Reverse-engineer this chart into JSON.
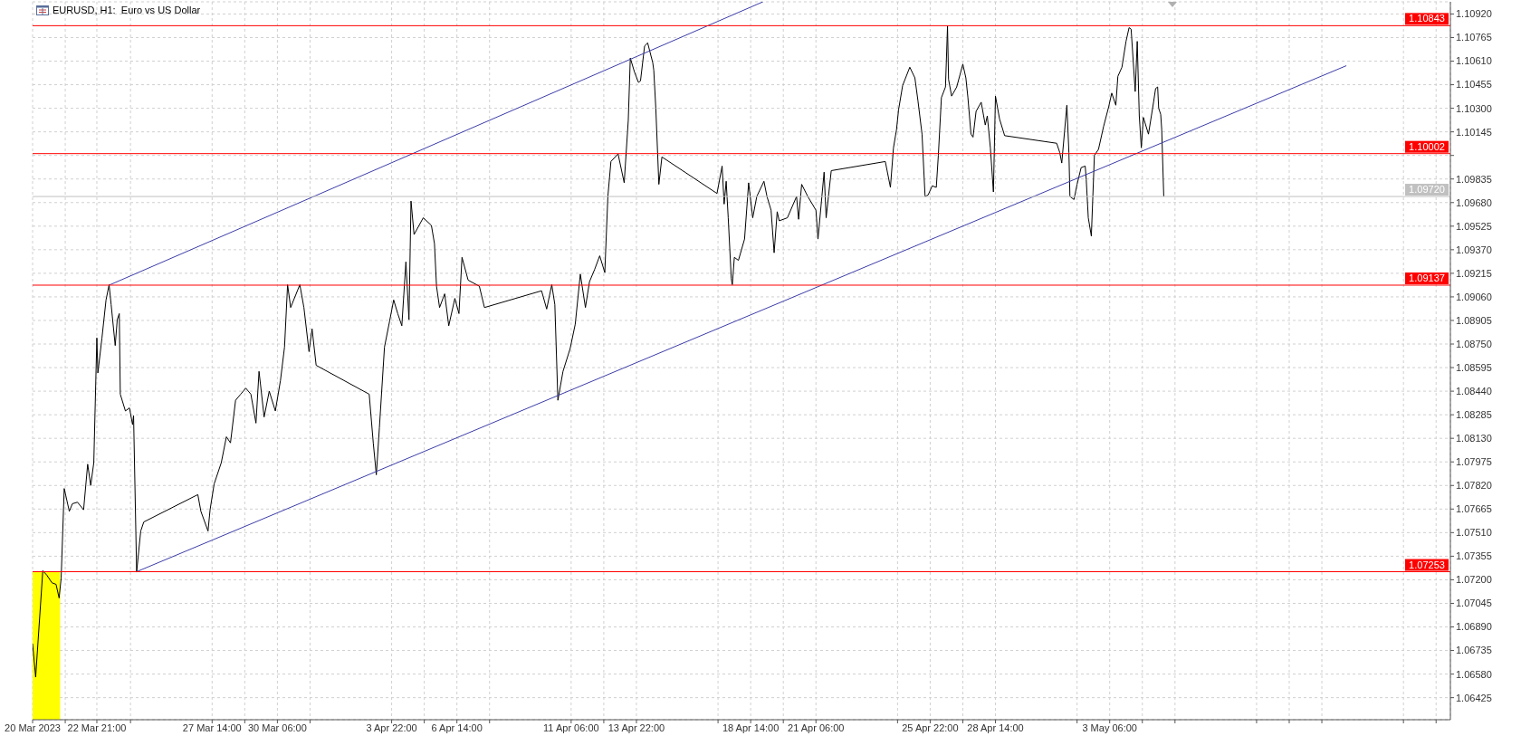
{
  "chart_data": {
    "type": "line",
    "title": "EURUSD, H1:  Euro vs US Dollar",
    "xlim": [
      "2023-03-20T06:00",
      "2023-05-17T04:00"
    ],
    "xticks": [
      {
        "value": "2023-03-20T06:00",
        "label": "20 Mar 2023"
      },
      {
        "value": "2023-03-21T14:00",
        "label": null
      },
      {
        "value": "2023-03-22T21:00",
        "label": "22 Mar 21:00"
      },
      {
        "value": "2023-03-24T06:00",
        "label": null
      },
      {
        "value": "2023-03-27T14:00",
        "label": "27 Mar 14:00"
      },
      {
        "value": "2023-03-28T22:00",
        "label": null
      },
      {
        "value": "2023-03-30T06:00",
        "label": "30 Mar 06:00"
      },
      {
        "value": "2023-03-31T14:00",
        "label": null
      },
      {
        "value": "2023-04-03T22:00",
        "label": "3 Apr 22:00"
      },
      {
        "value": "2023-04-05T06:00",
        "label": null
      },
      {
        "value": "2023-04-06T14:00",
        "label": "6 Apr 14:00"
      },
      {
        "value": "2023-04-07T22:00",
        "label": null
      },
      {
        "value": "2023-04-11T06:00",
        "label": "11 Apr 06:00"
      },
      {
        "value": "2023-04-12T14:00",
        "label": null
      },
      {
        "value": "2023-04-13T22:00",
        "label": "13 Apr 22:00"
      },
      {
        "value": "2023-04-17T06:00",
        "label": null
      },
      {
        "value": "2023-04-18T14:00",
        "label": "18 Apr 14:00"
      },
      {
        "value": "2023-04-19T22:00",
        "label": null
      },
      {
        "value": "2023-04-21T06:00",
        "label": "21 Apr 06:00"
      },
      {
        "value": "2023-04-24T14:00",
        "label": null
      },
      {
        "value": "2023-04-25T22:00",
        "label": "25 Apr 22:00"
      },
      {
        "value": "2023-04-27T06:00",
        "label": null
      },
      {
        "value": "2023-04-28T14:00",
        "label": "28 Apr 14:00"
      },
      {
        "value": "2023-05-01T22:00",
        "label": null
      },
      {
        "value": "2023-05-03T06:00",
        "label": "3 May 06:00"
      },
      {
        "value": "2023-05-04T14:00",
        "label": null
      },
      {
        "value": "2023-05-05T22:00",
        "label": null
      },
      {
        "value": "2023-05-09T06:00",
        "label": null
      },
      {
        "value": "2023-05-10T14:00",
        "label": null
      },
      {
        "value": "2023-05-11T22:00",
        "label": null
      },
      {
        "value": "2023-05-15T06:00",
        "label": null
      },
      {
        "value": "2023-05-16T14:00",
        "label": null
      }
    ],
    "ylim": [
      1.0628,
      1.11
    ],
    "yticks": [
      {
        "value": 1.06425,
        "label": "1.06425"
      },
      {
        "value": 1.0658,
        "label": "1.06580"
      },
      {
        "value": 1.06735,
        "label": "1.06735"
      },
      {
        "value": 1.0689,
        "label": "1.06890"
      },
      {
        "value": 1.07045,
        "label": "1.07045"
      },
      {
        "value": 1.072,
        "label": "1.07200"
      },
      {
        "value": 1.07355,
        "label": "1.07355"
      },
      {
        "value": 1.0751,
        "label": "1.07510"
      },
      {
        "value": 1.07665,
        "label": "1.07665"
      },
      {
        "value": 1.0782,
        "label": "1.07820"
      },
      {
        "value": 1.07975,
        "label": "1.07975"
      },
      {
        "value": 1.0813,
        "label": "1.08130"
      },
      {
        "value": 1.08285,
        "label": "1.08285"
      },
      {
        "value": 1.0844,
        "label": "1.08440"
      },
      {
        "value": 1.08595,
        "label": "1.08595"
      },
      {
        "value": 1.0875,
        "label": "1.08750"
      },
      {
        "value": 1.08905,
        "label": "1.08905"
      },
      {
        "value": 1.0906,
        "label": "1.09060"
      },
      {
        "value": 1.09215,
        "label": "1.09215"
      },
      {
        "value": 1.0937,
        "label": "1.09370"
      },
      {
        "value": 1.09525,
        "label": "1.09525"
      },
      {
        "value": 1.0968,
        "label": "1.09680"
      },
      {
        "value": 1.09835,
        "label": "1.09835"
      },
      {
        "value": 1.0999,
        "label": null
      },
      {
        "value": 1.10145,
        "label": "1.10145"
      },
      {
        "value": 1.103,
        "label": "1.10300"
      },
      {
        "value": 1.10455,
        "label": "1.10455"
      },
      {
        "value": 1.1061,
        "label": "1.10610"
      },
      {
        "value": 1.10765,
        "label": "1.10765"
      },
      {
        "value": 1.1092,
        "label": "1.10920"
      }
    ],
    "grid": true,
    "ref_lines": [
      {
        "axis": "y",
        "value": 1.10843,
        "label": "1.10843",
        "color": "#ff0000"
      },
      {
        "axis": "y",
        "value": 1.10002,
        "label": "1.10002",
        "color": "#ff0000"
      },
      {
        "axis": "y",
        "value": 1.09137,
        "label": "1.09137",
        "color": "#ff0000"
      },
      {
        "axis": "y",
        "value": 1.07253,
        "label": "1.07253",
        "color": "#ff0000"
      },
      {
        "axis": "y",
        "value": 1.0972,
        "label": "1.09720",
        "color": "#c0c0c0"
      }
    ],
    "series": [
      {
        "type": "area",
        "color": "#ffff00",
        "x": [
          "2023-03-20T06:00",
          "2023-03-21T09:00"
        ],
        "values": [
          1.07253,
          1.07253
        ]
      },
      {
        "color": "#000000",
        "x": [
          "2023-03-20T06:00",
          "2023-03-20T09:00",
          "2023-03-20T16:00",
          "2023-03-20T20:00",
          "2023-03-21T01:00",
          "2023-03-21T05:00",
          "2023-03-21T08:00",
          "2023-03-21T10:00",
          "2023-03-21T13:00",
          "2023-03-21T18:00",
          "2023-03-21T21:00",
          "2023-03-22T02:00",
          "2023-03-22T08:00",
          "2023-03-22T12:00",
          "2023-03-22T15:00",
          "2023-03-22T18:00",
          "2023-03-22T21:00",
          "2023-03-22T22:00",
          "2023-03-23T02:00",
          "2023-03-23T06:00",
          "2023-03-23T09:00",
          "2023-03-23T11:00",
          "2023-03-23T15:00",
          "2023-03-23T17:00",
          "2023-03-23T19:00",
          "2023-03-23T20:00",
          "2023-03-24T01:00",
          "2023-03-24T05:00",
          "2023-03-24T08:00",
          "2023-03-24T09:00",
          "2023-03-24T12:00",
          "2023-03-24T16:00",
          "2023-03-24T19:00",
          "2023-03-27T00:00",
          "2023-03-27T03:00",
          "2023-03-27T10:00",
          "2023-03-27T12:00",
          "2023-03-27T16:00",
          "2023-03-27T23:00",
          "2023-03-28T04:00",
          "2023-03-28T08:00",
          "2023-03-28T13:00",
          "2023-03-28T18:00",
          "2023-03-28T23:00",
          "2023-03-29T04:00",
          "2023-03-29T09:00",
          "2023-03-29T12:00",
          "2023-03-29T17:00",
          "2023-03-29T22:00",
          "2023-03-30T04:00",
          "2023-03-30T09:00",
          "2023-03-30T13:00",
          "2023-03-30T16:00",
          "2023-03-30T19:00",
          "2023-03-31T04:00",
          "2023-03-31T08:00",
          "2023-03-31T13:00",
          "2023-03-31T16:00",
          "2023-03-31T20:00",
          "2023-04-03T00:00",
          "2023-04-03T04:00",
          "2023-04-03T07:00",
          "2023-04-03T10:00",
          "2023-04-03T15:00",
          "2023-04-03T20:00",
          "2023-04-04T00:00",
          "2023-04-04T04:00",
          "2023-04-04T08:00",
          "2023-04-04T12:00",
          "2023-04-04T15:00",
          "2023-04-04T17:00",
          "2023-04-04T20:00",
          "2023-04-05T05:00",
          "2023-04-05T13:00",
          "2023-04-05T16:00",
          "2023-04-05T18:00",
          "2023-04-05T21:00",
          "2023-04-06T02:00",
          "2023-04-06T06:00",
          "2023-04-06T12:00",
          "2023-04-06T16:00",
          "2023-04-06T19:00",
          "2023-04-07T01:00",
          "2023-04-07T12:00",
          "2023-04-07T17:00",
          "2023-04-10T01:00",
          "2023-04-10T06:00",
          "2023-04-10T11:00",
          "2023-04-10T14:00",
          "2023-04-10T17:00",
          "2023-04-10T22:00",
          "2023-04-11T05:00",
          "2023-04-11T10:00",
          "2023-04-11T15:00",
          "2023-04-11T20:00",
          "2023-04-12T00:00",
          "2023-04-12T05:00",
          "2023-04-12T10:00",
          "2023-04-12T15:00",
          "2023-04-12T18:00",
          "2023-04-12T21:00",
          "2023-04-13T04:00",
          "2023-04-13T10:00",
          "2023-04-13T14:00",
          "2023-04-13T16:00",
          "2023-04-13T20:00",
          "2023-04-14T00:00",
          "2023-04-14T02:00",
          "2023-04-14T06:00",
          "2023-04-14T09:00",
          "2023-04-14T14:00",
          "2023-04-14T15:00",
          "2023-04-14T17:00",
          "2023-04-14T20:00",
          "2023-04-14T23:00",
          "2023-04-17T05:00",
          "2023-04-17T10:00",
          "2023-04-17T12:00",
          "2023-04-17T14:00",
          "2023-04-17T16:00",
          "2023-04-17T19:00",
          "2023-04-17T20:00",
          "2023-04-17T22:00",
          "2023-04-18T02:00",
          "2023-04-18T08:00",
          "2023-04-18T12:00",
          "2023-04-18T16:00",
          "2023-04-18T20:00",
          "2023-04-19T03:00",
          "2023-04-19T06:00",
          "2023-04-19T10:00",
          "2023-04-19T13:00",
          "2023-04-19T16:00",
          "2023-04-19T18:00",
          "2023-04-20T02:00",
          "2023-04-20T11:00",
          "2023-04-20T13:00",
          "2023-04-20T16:00",
          "2023-04-20T22:00",
          "2023-04-21T06:00",
          "2023-04-21T08:00",
          "2023-04-21T11:00",
          "2023-04-21T14:00",
          "2023-04-21T16:00",
          "2023-04-21T21:00",
          "2023-04-24T02:00",
          "2023-04-24T07:00",
          "2023-04-24T10:00",
          "2023-04-24T13:00",
          "2023-04-24T15:00",
          "2023-04-24T19:00",
          "2023-04-25T02:00",
          "2023-04-25T07:00",
          "2023-04-25T10:00",
          "2023-04-25T14:00",
          "2023-04-25T17:00",
          "2023-04-25T20:00",
          "2023-04-26T00:00",
          "2023-04-26T04:00",
          "2023-04-26T06:00",
          "2023-04-26T09:00",
          "2023-04-26T13:00",
          "2023-04-26T15:00",
          "2023-04-26T16:00",
          "2023-04-26T19:00",
          "2023-04-27T00:00",
          "2023-04-27T06:00",
          "2023-04-27T09:00",
          "2023-04-27T11:00",
          "2023-04-27T14:00",
          "2023-04-27T16:00",
          "2023-04-27T19:00",
          "2023-04-28T00:00",
          "2023-04-28T04:00",
          "2023-04-28T06:00",
          "2023-04-28T09:00",
          "2023-04-28T12:00",
          "2023-04-28T14:00",
          "2023-04-28T18:00",
          "2023-04-28T23:00",
          "2023-05-01T02:00",
          "2023-05-01T05:00",
          "2023-05-01T07:00",
          "2023-05-01T12:00",
          "2023-05-01T14:00",
          "2023-05-01T15:00",
          "2023-05-01T19:00",
          "2023-05-01T22:00",
          "2023-05-02T02:00",
          "2023-05-02T06:00",
          "2023-05-02T07:00",
          "2023-05-02T09:00",
          "2023-05-02T12:00",
          "2023-05-02T15:00",
          "2023-05-02T19:00",
          "2023-05-03T00:00",
          "2023-05-03T05:00",
          "2023-05-03T08:00",
          "2023-05-03T12:00",
          "2023-05-03T14:00",
          "2023-05-03T18:00",
          "2023-05-03T22:00",
          "2023-05-04T01:00",
          "2023-05-04T03:00",
          "2023-05-04T07:00",
          "2023-05-04T09:00",
          "2023-05-04T11:00",
          "2023-05-04T13:00",
          "2023-05-04T15:00",
          "2023-05-04T20:00",
          "2023-05-05T01:00",
          "2023-05-05T03:00",
          "2023-05-05T05:00",
          "2023-05-05T06:00",
          "2023-05-05T08:00",
          "2023-05-05T09:00",
          "2023-05-05T11:00"
        ],
        "values": [
          1.0678,
          1.0656,
          1.0726,
          1.0723,
          1.0718,
          1.0717,
          1.0708,
          1.0721,
          1.078,
          1.0765,
          1.077,
          1.0771,
          1.0766,
          1.0796,
          1.0782,
          1.0797,
          1.0879,
          1.0856,
          1.0879,
          1.0904,
          1.0914,
          1.0901,
          1.0874,
          1.0891,
          1.0895,
          1.0842,
          1.0831,
          1.0833,
          1.0822,
          1.0828,
          1.0725,
          1.0752,
          1.0758,
          1.0776,
          1.0765,
          1.0752,
          1.0766,
          1.0783,
          1.0797,
          1.0814,
          1.081,
          1.0838,
          1.0842,
          1.0846,
          1.0842,
          1.0823,
          1.0857,
          1.0827,
          1.0844,
          1.0831,
          1.0851,
          1.0873,
          1.0914,
          1.0899,
          1.0914,
          1.0899,
          1.087,
          1.0885,
          1.0861,
          1.0842,
          1.081,
          1.0789,
          1.082,
          1.0873,
          1.089,
          1.0904,
          1.0895,
          1.0887,
          1.0929,
          1.0891,
          1.0969,
          1.0947,
          1.0958,
          1.0953,
          1.0941,
          1.0913,
          1.0899,
          1.0908,
          1.0887,
          1.0905,
          1.0895,
          1.0932,
          1.0917,
          1.0913,
          1.0899,
          1.091,
          1.0898,
          1.0914,
          1.0901,
          1.0838,
          1.0857,
          1.0872,
          1.0888,
          1.0921,
          1.0899,
          1.0916,
          1.0924,
          1.0933,
          1.0922,
          1.0972,
          1.0995,
          1.1,
          1.0981,
          1.1022,
          1.1063,
          1.1054,
          1.1047,
          1.1048,
          1.1071,
          1.1073,
          1.106,
          1.1055,
          1.103,
          1.098,
          1.0998,
          1.0974,
          1.0992,
          1.0967,
          1.0982,
          1.0958,
          1.0918,
          1.0914,
          1.0932,
          1.093,
          1.0944,
          1.0981,
          1.0958,
          1.0972,
          1.0982,
          1.0972,
          1.0963,
          1.0935,
          1.0962,
          1.0956,
          1.0958,
          1.0972,
          1.0957,
          1.098,
          1.0972,
          1.0963,
          1.0944,
          1.0966,
          1.0988,
          1.0958,
          1.0989,
          1.0995,
          1.0978,
          1.1004,
          1.1016,
          1.1029,
          1.1045,
          1.1057,
          1.105,
          1.1035,
          1.1013,
          1.0972,
          1.0973,
          1.0979,
          1.0978,
          1.0999,
          1.1037,
          1.1044,
          1.1084,
          1.1049,
          1.1038,
          1.1044,
          1.1059,
          1.105,
          1.1037,
          1.1013,
          1.1011,
          1.1028,
          1.1034,
          1.1019,
          1.1025,
          1.1004,
          1.0975,
          1.1038,
          1.1023,
          1.1012,
          1.1007,
          1.1001,
          1.0994,
          1.1032,
          1.1001,
          1.0972,
          1.097,
          1.098,
          1.0991,
          1.0992,
          1.0983,
          1.0958,
          1.0946,
          1.0999,
          1.1003,
          1.1018,
          1.1031,
          1.104,
          1.1032,
          1.1051,
          1.1057,
          1.1074,
          1.1083,
          1.1082,
          1.1041,
          1.1074,
          1.1025,
          1.1004,
          1.1024,
          1.1013,
          1.1034,
          1.1043,
          1.1044,
          1.103,
          1.1026,
          1.1016,
          1.0972
        ]
      },
      {
        "color": "#3c3ca8",
        "x": [
          "2023-03-23T09:00",
          "2023-04-19T02:00"
        ],
        "values": [
          1.09137,
          1.11
        ]
      },
      {
        "color": "#3c3ca8",
        "x": [
          "2023-03-24T12:00",
          "2023-05-12T22:00"
        ],
        "values": [
          1.07253,
          1.1058
        ]
      }
    ]
  }
}
